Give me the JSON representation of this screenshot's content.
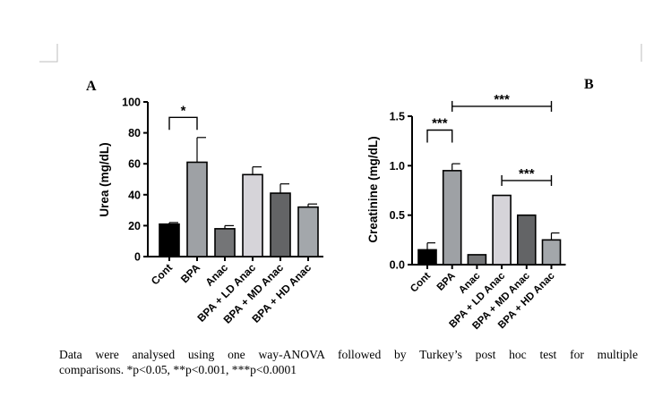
{
  "panels": {
    "a_label": "A",
    "b_label": "B"
  },
  "chart_data": [
    {
      "type": "bar",
      "panel": "A",
      "categories": [
        "Cont",
        "BPA",
        "Anac",
        "BPA + LD Anac",
        "BPA + MD Anac",
        "BPA + HD Anac"
      ],
      "values": [
        21,
        61,
        18,
        53,
        41,
        32
      ],
      "errors": [
        1,
        16,
        2,
        5,
        6,
        2
      ],
      "bar_colors": [
        "#000000",
        "#9ea1a5",
        "#747577",
        "#d6d4d9",
        "#636466",
        "#a3a7ab"
      ],
      "xlabel": "",
      "ylabel": "Urea (mg/dL)",
      "ylim": [
        0,
        100
      ],
      "yticks": [
        0,
        20,
        40,
        60,
        80,
        100
      ],
      "ytick_labels": [
        "0",
        "20",
        "40",
        "60",
        "80",
        "100"
      ],
      "significance": [
        {
          "from": 0,
          "to": 1,
          "label": "*",
          "level": 90,
          "style": "bracket"
        }
      ]
    },
    {
      "type": "bar",
      "panel": "B",
      "categories": [
        "Cont",
        "BPA",
        "Anac",
        "BPA + LD Anac",
        "BPA + MD Anac",
        "BPA + HD Anac"
      ],
      "values": [
        0.15,
        0.95,
        0.1,
        0.7,
        0.5,
        0.25
      ],
      "errors": [
        0.07,
        0.07,
        0,
        0,
        0,
        0.07
      ],
      "bar_colors": [
        "#000000",
        "#9ea1a5",
        "#747577",
        "#d6d4d9",
        "#636466",
        "#a3a7ab"
      ],
      "xlabel": "",
      "ylabel": "Creatinine (mg/dL)",
      "ylim": [
        0,
        1.5
      ],
      "yticks": [
        0,
        0.5,
        1.0,
        1.5
      ],
      "ytick_labels": [
        "0.0",
        "0.5",
        "1.0",
        "1.5"
      ],
      "significance": [
        {
          "from": 0,
          "to": 1,
          "label": "***",
          "level": 1.36,
          "style": "bracket"
        },
        {
          "from": 1,
          "to": 5,
          "label": "***",
          "level": 1.6,
          "style": "span"
        },
        {
          "from": 3,
          "to": 5,
          "label": "***",
          "level": 0.85,
          "style": "span"
        }
      ]
    }
  ],
  "caption": {
    "line1": "Data were analysed using one way-ANOVA followed by Turkey’s post hoc test for multiple",
    "line2": "comparisons. *p<0.05, **p<0.001, ***p<0.0001"
  }
}
